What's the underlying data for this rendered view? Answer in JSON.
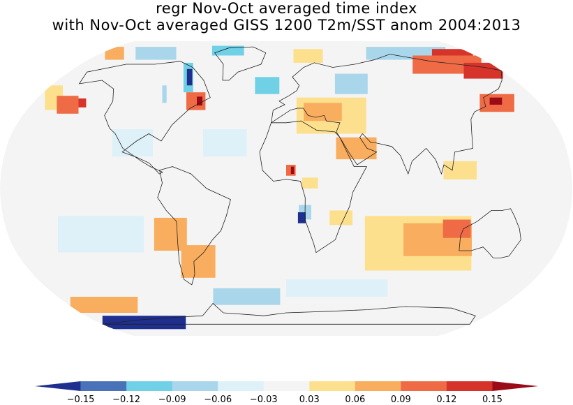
{
  "title": {
    "line1": "regr Nov-Oct averaged time index",
    "line2": "with Nov-Oct averaged GISS 1200 T2m/SST anom 2004:2013"
  },
  "colorbar": {
    "colors": [
      "#1e2f8f",
      "#4a72b8",
      "#6fd0e6",
      "#a9d6ea",
      "#dff1f8",
      "#f4f4f4",
      "#fde08e",
      "#f9ad5e",
      "#ef6b45",
      "#d6332b",
      "#9b0a17"
    ],
    "ticks": [
      "-0.15",
      "-0.12",
      "-0.09",
      "-0.06",
      "-0.03",
      "0.03",
      "0.06",
      "0.09",
      "0.12",
      "0.15"
    ]
  },
  "map": {
    "projection": "robinson",
    "background": "#f4f4f4",
    "anomaly_regions": [
      {
        "lon": -170,
        "lat": 78,
        "w": 45,
        "h": 10,
        "level": "0.06"
      },
      {
        "lon": -130,
        "lat": 78,
        "w": 60,
        "h": 10,
        "level": "-0.06"
      },
      {
        "lon": -60,
        "lat": 80,
        "w": 40,
        "h": 8,
        "level": "-0.09"
      },
      {
        "lon": 20,
        "lat": 76,
        "w": 25,
        "h": 10,
        "level": "0.03"
      },
      {
        "lon": 115,
        "lat": 78,
        "w": 60,
        "h": 10,
        "level": "-0.06"
      },
      {
        "lon": 160,
        "lat": 77,
        "w": 20,
        "h": 8,
        "level": "0.12"
      },
      {
        "lon": 140,
        "lat": 70,
        "w": 40,
        "h": 12,
        "level": "0.09"
      },
      {
        "lon": 165,
        "lat": 66,
        "w": 15,
        "h": 10,
        "level": "0.12"
      },
      {
        "lon": -170,
        "lat": 50,
        "w": 30,
        "h": 14,
        "level": "0.03"
      },
      {
        "lon": -155,
        "lat": 46,
        "w": 25,
        "h": 10,
        "level": "0.09"
      },
      {
        "lon": -145,
        "lat": 47,
        "w": 10,
        "h": 5,
        "level": "0.12"
      },
      {
        "lon": -80,
        "lat": 62,
        "w": 22,
        "h": 18,
        "level": "-0.09"
      },
      {
        "lon": -78,
        "lat": 62,
        "w": 12,
        "h": 10,
        "level": "-0.15"
      },
      {
        "lon": -90,
        "lat": 52,
        "w": 10,
        "h": 10,
        "level": "-0.06"
      },
      {
        "lon": -65,
        "lat": 48,
        "w": 18,
        "h": 10,
        "level": "0.09"
      },
      {
        "lon": -62,
        "lat": 48,
        "w": 6,
        "h": 5,
        "level": "0.15"
      },
      {
        "lon": -15,
        "lat": 57,
        "w": 20,
        "h": 10,
        "level": "-0.09"
      },
      {
        "lon": 50,
        "lat": 58,
        "w": 20,
        "h": 12,
        "level": "-0.06"
      },
      {
        "lon": 30,
        "lat": 40,
        "w": 45,
        "h": 20,
        "level": "0.03"
      },
      {
        "lon": 25,
        "lat": 42,
        "w": 25,
        "h": 10,
        "level": "0.06"
      },
      {
        "lon": 45,
        "lat": 22,
        "w": 25,
        "h": 12,
        "level": "0.06"
      },
      {
        "lon": 3,
        "lat": 10,
        "w": 6,
        "h": 6,
        "level": "0.09"
      },
      {
        "lon": 4,
        "lat": 10,
        "w": 2,
        "h": 4,
        "level": "0.15"
      },
      {
        "lon": 15,
        "lat": 3,
        "w": 10,
        "h": 6,
        "level": "0.03"
      },
      {
        "lon": 12,
        "lat": -13,
        "w": 8,
        "h": 8,
        "level": "-0.06"
      },
      {
        "lon": 10,
        "lat": -16,
        "w": 5,
        "h": 6,
        "level": "-0.15"
      },
      {
        "lon": 35,
        "lat": -16,
        "w": 15,
        "h": 8,
        "level": "0.03"
      },
      {
        "lon": 150,
        "lat": 47,
        "w": 15,
        "h": 10,
        "level": "0.09"
      },
      {
        "lon": 150,
        "lat": 48,
        "w": 5,
        "h": 4,
        "level": "0.15"
      },
      {
        "lon": 110,
        "lat": 10,
        "w": 20,
        "h": 10,
        "level": "0.03"
      },
      {
        "lon": 90,
        "lat": -30,
        "w": 80,
        "h": 30,
        "level": "0.03"
      },
      {
        "lon": 100,
        "lat": -28,
        "w": 50,
        "h": 18,
        "level": "0.06"
      },
      {
        "lon": 110,
        "lat": -22,
        "w": 20,
        "h": 10,
        "level": "0.09"
      },
      {
        "lon": -75,
        "lat": -25,
        "w": 18,
        "h": 18,
        "level": "0.06"
      },
      {
        "lon": -60,
        "lat": -40,
        "w": 18,
        "h": 18,
        "level": "0.06"
      },
      {
        "lon": -120,
        "lat": -25,
        "w": 50,
        "h": 20,
        "level": "-0.03"
      },
      {
        "lon": -150,
        "lat": -65,
        "w": 40,
        "h": 10,
        "level": "0.06"
      },
      {
        "lon": -135,
        "lat": -77,
        "w": 60,
        "h": 10,
        "level": "-0.15"
      },
      {
        "lon": -30,
        "lat": -60,
        "w": 50,
        "h": 10,
        "level": "-0.06"
      },
      {
        "lon": 40,
        "lat": -55,
        "w": 80,
        "h": 10,
        "level": "-0.03"
      },
      {
        "lon": -100,
        "lat": 25,
        "w": 30,
        "h": 15,
        "level": "-0.03"
      },
      {
        "lon": -40,
        "lat": 25,
        "w": 30,
        "h": 15,
        "level": "-0.03"
      }
    ]
  }
}
